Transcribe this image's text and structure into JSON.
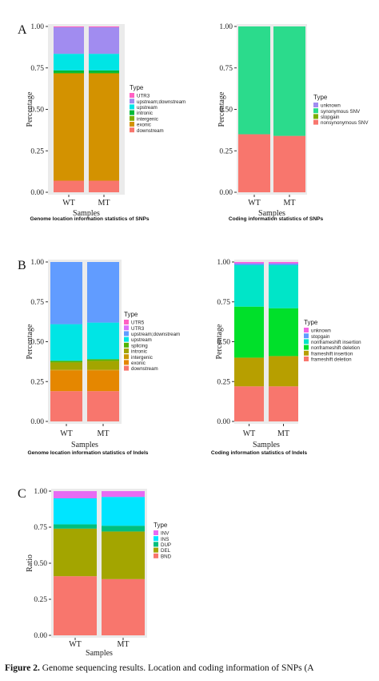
{
  "figure": {
    "caption_label": "Figure 2.",
    "caption_text": "Genome sequencing results.  Location and coding information of SNPs (A"
  },
  "chart_data": [
    {
      "type": "bar",
      "panel_label": "A",
      "title": "Genome location information statistics of SNPs",
      "xlabel": "Samples",
      "ylabel": "Percentage",
      "categories": [
        "WT",
        "MT"
      ],
      "ylim": [
        0,
        1
      ],
      "yticks": [
        "0.00",
        "0.25",
        "0.50",
        "0.75",
        "1.00"
      ],
      "grid": false,
      "legend_position": "right",
      "legend_title": "Type",
      "series": [
        {
          "name": "downstream",
          "color": "#F8766D",
          "values": [
            0.07,
            0.07
          ]
        },
        {
          "name": "exonic",
          "color": "#D39200",
          "values": [
            0.645,
            0.645
          ]
        },
        {
          "name": "intergenic",
          "color": "#7CAE00",
          "values": [
            0.005,
            0.005
          ]
        },
        {
          "name": "intronic",
          "color": "#00BA38",
          "values": [
            0.015,
            0.015
          ]
        },
        {
          "name": "upstream",
          "color": "#00E5E5",
          "values": [
            0.1,
            0.1
          ]
        },
        {
          "name": "upstream;downstream",
          "color": "#A18CF0",
          "values": [
            0.16,
            0.16
          ]
        },
        {
          "name": "UTR3",
          "color": "#FF61C3",
          "values": [
            0.005,
            0.005
          ]
        }
      ]
    },
    {
      "type": "bar",
      "title": "Coding information statistics of SNPs",
      "xlabel": "Samples",
      "ylabel": "Percentage",
      "categories": [
        "WT",
        "MT"
      ],
      "ylim": [
        0,
        1
      ],
      "yticks": [
        "0.00",
        "0.25",
        "0.50",
        "0.75",
        "1.00"
      ],
      "grid": false,
      "legend_position": "right",
      "legend_title": "Type",
      "series": [
        {
          "name": "nonsynonymous SNV",
          "color": "#F8766D",
          "values": [
            0.35,
            0.34
          ]
        },
        {
          "name": "stopgain",
          "color": "#7CAE00",
          "values": [
            0.0,
            0.0
          ]
        },
        {
          "name": "synonymous SNV",
          "color": "#2BDB8C",
          "values": [
            0.65,
            0.66
          ]
        },
        {
          "name": "unknown",
          "color": "#A18CF0",
          "values": [
            0.0,
            0.0
          ]
        }
      ]
    },
    {
      "type": "bar",
      "panel_label": "B",
      "title": "Genome location information statistics of Indels",
      "xlabel": "Samples",
      "ylabel": "Percentage",
      "categories": [
        "WT",
        "MT"
      ],
      "ylim": [
        0,
        1
      ],
      "yticks": [
        "0.00",
        "0.25",
        "0.50",
        "0.75",
        "1.00"
      ],
      "grid": false,
      "legend_position": "right",
      "legend_title": "Type",
      "series": [
        {
          "name": "downstream",
          "color": "#F8766D",
          "values": [
            0.19,
            0.19
          ]
        },
        {
          "name": "exonic",
          "color": "#E58700",
          "values": [
            0.13,
            0.13
          ]
        },
        {
          "name": "intergenic",
          "color": "#C99800",
          "values": [
            0.005,
            0.005
          ]
        },
        {
          "name": "intronic",
          "color": "#A3A500",
          "values": [
            0.045,
            0.055
          ]
        },
        {
          "name": "splicing",
          "color": "#53B400",
          "values": [
            0.01,
            0.01
          ]
        },
        {
          "name": "upstream",
          "color": "#00E5E5",
          "values": [
            0.23,
            0.23
          ]
        },
        {
          "name": "upstream;downstream",
          "color": "#619CFF",
          "values": [
            0.39,
            0.38
          ]
        },
        {
          "name": "UTR3",
          "color": "#DB72FB",
          "values": [
            0.0,
            0.0
          ]
        },
        {
          "name": "UTR5",
          "color": "#FF61C3",
          "values": [
            0.0,
            0.0
          ]
        }
      ]
    },
    {
      "type": "bar",
      "title": "Coding information statistics of Indels",
      "xlabel": "Samples",
      "ylabel": "Percentage",
      "categories": [
        "WT",
        "MT"
      ],
      "ylim": [
        0,
        1
      ],
      "yticks": [
        "0.00",
        "0.25",
        "0.50",
        "0.75",
        "1.00"
      ],
      "grid": false,
      "legend_position": "right",
      "legend_title": "Type",
      "series": [
        {
          "name": "frameshift deletion",
          "color": "#F8766D",
          "values": [
            0.22,
            0.22
          ]
        },
        {
          "name": "frameshift insertion",
          "color": "#B79F00",
          "values": [
            0.18,
            0.19
          ]
        },
        {
          "name": "nonframeshift deletion",
          "color": "#00E02A",
          "values": [
            0.32,
            0.3
          ]
        },
        {
          "name": "nonframeshift insertion",
          "color": "#00E5C8",
          "values": [
            0.26,
            0.27
          ]
        },
        {
          "name": "stopgain",
          "color": "#619CFF",
          "values": [
            0.01,
            0.01
          ]
        },
        {
          "name": "unknown",
          "color": "#F564E3",
          "values": [
            0.01,
            0.01
          ]
        }
      ]
    },
    {
      "type": "bar",
      "panel_label": "C",
      "title": "",
      "xlabel": "Samples",
      "ylabel": "Ratio",
      "categories": [
        "WT",
        "MT"
      ],
      "ylim": [
        0,
        1
      ],
      "yticks": [
        "0.00",
        "0.25",
        "0.50",
        "0.75",
        "1.00"
      ],
      "grid": false,
      "legend_position": "right",
      "legend_title": "Type",
      "series": [
        {
          "name": "BND",
          "color": "#F8766D",
          "values": [
            0.41,
            0.39
          ]
        },
        {
          "name": "DEL",
          "color": "#A3A500",
          "values": [
            0.33,
            0.33
          ]
        },
        {
          "name": "DUP",
          "color": "#00BF7D",
          "values": [
            0.03,
            0.04
          ]
        },
        {
          "name": "INS",
          "color": "#00E5FF",
          "values": [
            0.18,
            0.2
          ]
        },
        {
          "name": "INV",
          "color": "#E76BF3",
          "values": [
            0.05,
            0.04
          ]
        }
      ]
    }
  ]
}
